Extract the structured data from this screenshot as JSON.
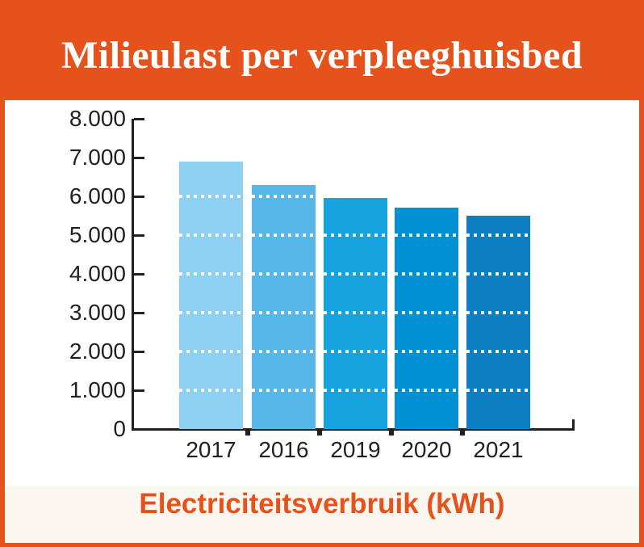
{
  "header": {
    "title": "Milieulast per verpleeghuisbed"
  },
  "footer": {
    "axis_title": "Electriciteitsverbruik (kWh)"
  },
  "colors": {
    "accent_orange": "#e5521c",
    "footer_background": "#faf6f0",
    "text_dark": "#231f20",
    "grid_dot_white": "#ffffff"
  },
  "chart_data": {
    "type": "bar",
    "categories": [
      "2017",
      "2016",
      "2019",
      "2020",
      "2021"
    ],
    "values": [
      6900,
      6300,
      5950,
      5700,
      5500
    ],
    "bar_colors": [
      "#8ed0f2",
      "#57b7e8",
      "#16a3de",
      "#0091d2",
      "#0b7fc1"
    ],
    "title": "Milieulast per verpleeghuisbed",
    "xlabel": "Electriciteitsverbruik (kWh)",
    "ylabel": "",
    "ylim": [
      0,
      8000
    ],
    "ytick_step": 1000,
    "ytick_labels": [
      "0",
      "1.000",
      "2.000",
      "3.000",
      "4.000",
      "5.000",
      "6.000",
      "7.000",
      "8.000"
    ],
    "grid": "horizontal dotted white lines across bars at each 1.000 step",
    "legend_position": "none"
  }
}
